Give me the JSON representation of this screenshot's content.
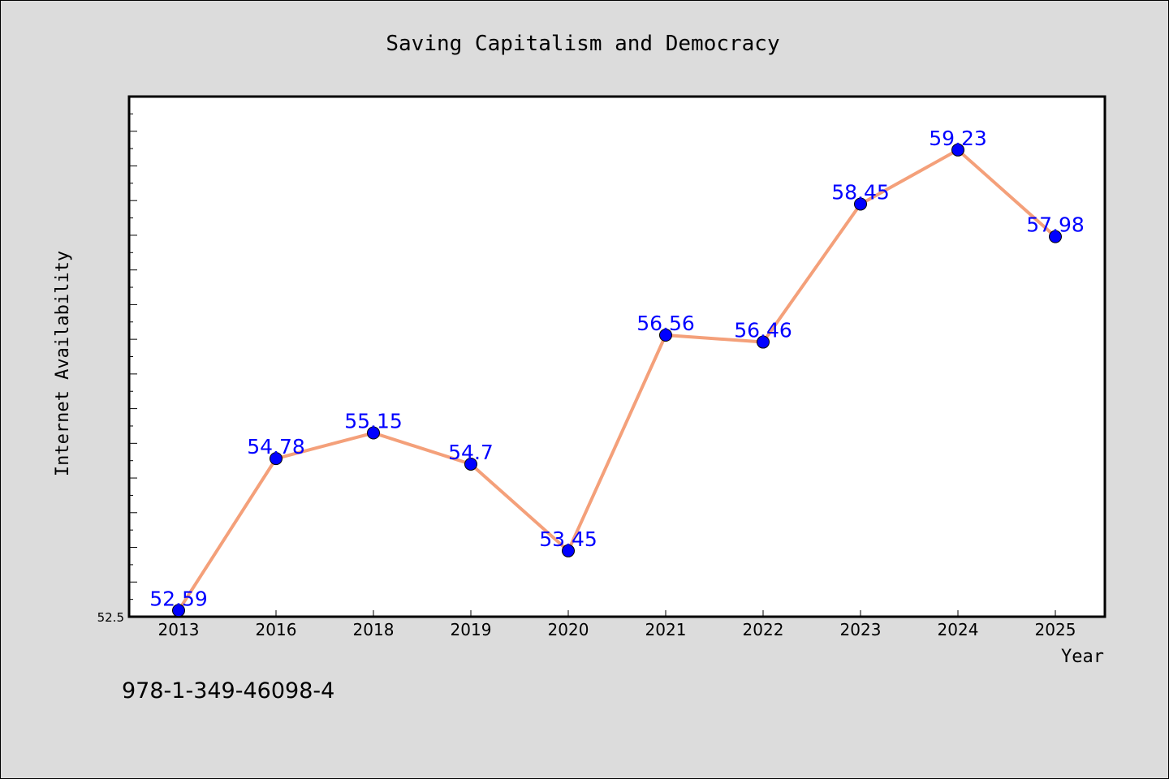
{
  "chart_data": {
    "type": "line",
    "title": "Saving Capitalism and Democracy",
    "xlabel": "Year",
    "ylabel": "Internet Availability",
    "categories": [
      "2013",
      "2016",
      "2018",
      "2019",
      "2020",
      "2021",
      "2022",
      "2023",
      "2024",
      "2025"
    ],
    "series": [
      {
        "values": [
          52.59,
          54.78,
          55.15,
          54.7,
          53.45,
          56.56,
          56.46,
          58.45,
          59.23,
          57.98
        ],
        "data_labels": [
          "52.59",
          "54.78",
          "55.15",
          "54.7",
          "53.45",
          "56.56",
          "56.46",
          "58.45",
          "59.23",
          "57.98"
        ],
        "line_color": "#f4a07a",
        "marker_color": "#0000ff"
      }
    ],
    "ylim": [
      52.5,
      60.0
    ],
    "y_tick_labels": [
      "52.5"
    ],
    "grid": false,
    "legend": "none"
  },
  "footer": {
    "code": "978-1-349-46098-4"
  },
  "colors": {
    "background": "#dcdcdc",
    "plot_background": "#ffffff",
    "line": "#f4a07a",
    "marker": "#0000ff",
    "data_label": "#0000ff"
  }
}
